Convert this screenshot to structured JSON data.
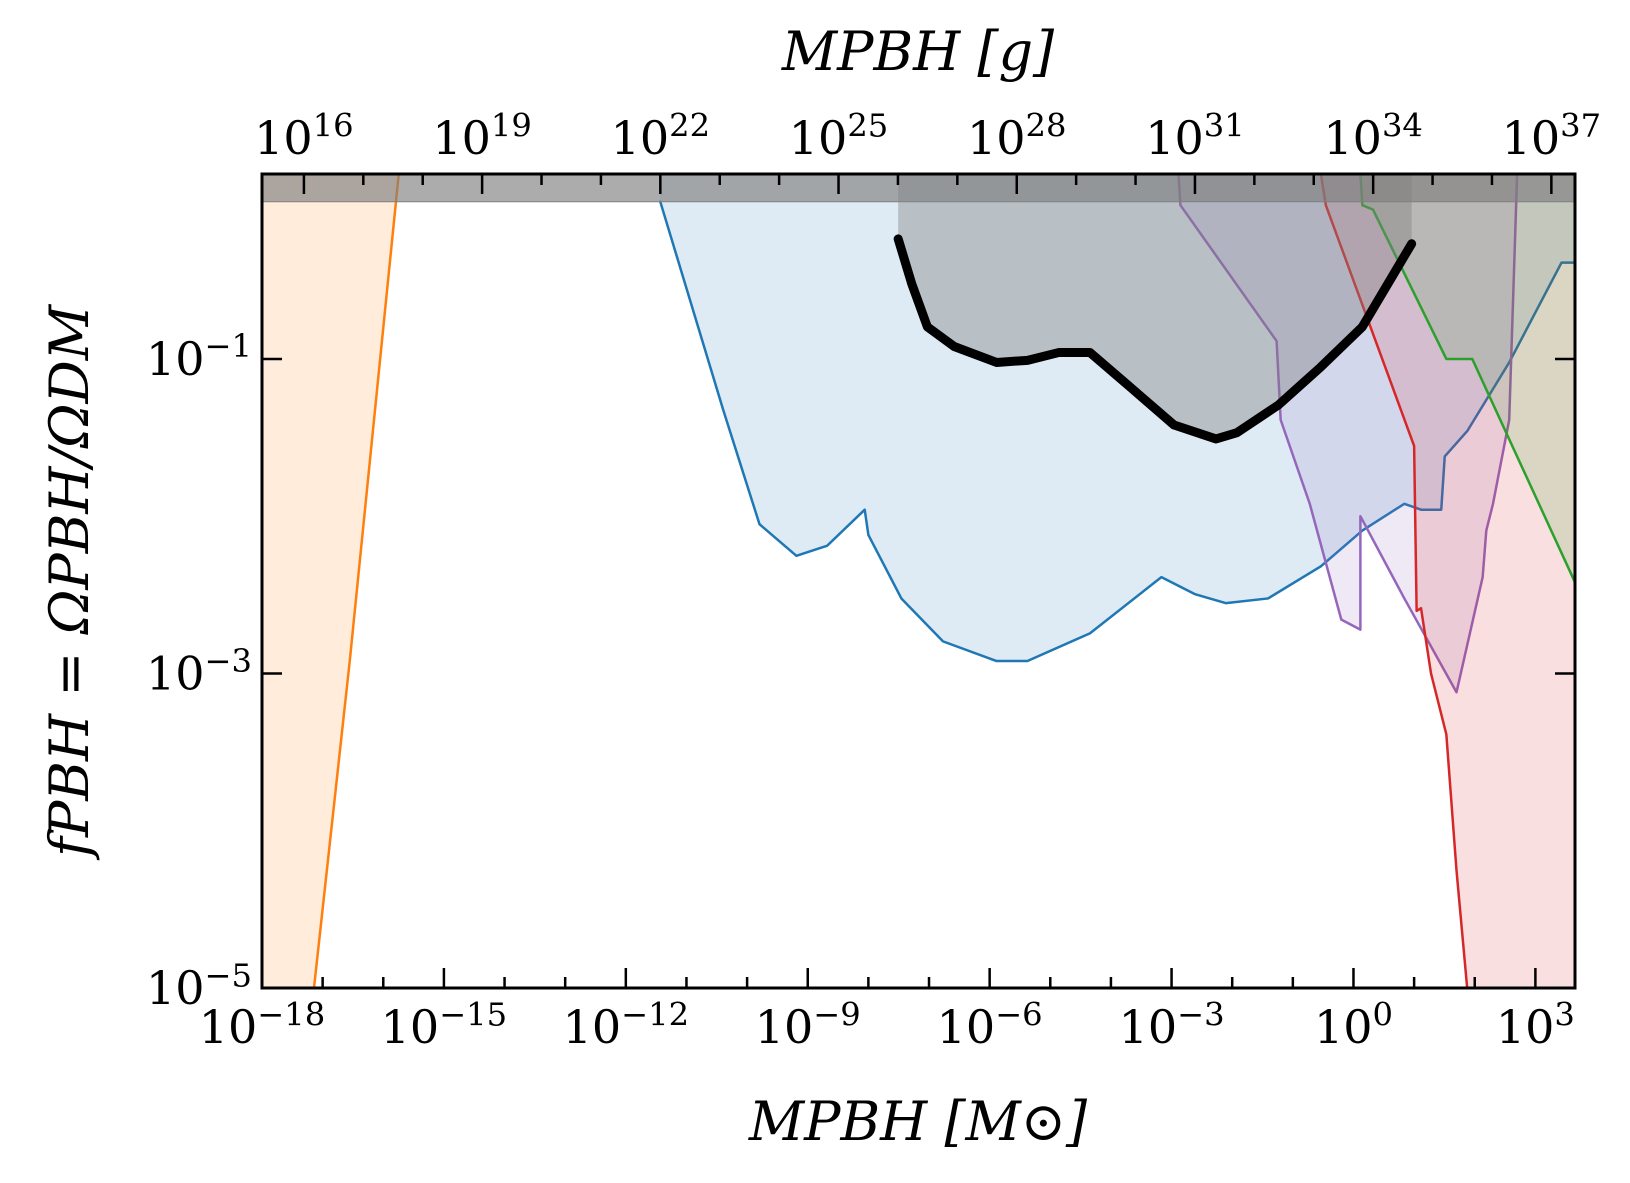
{
  "chart_data": {
    "type": "area",
    "xlabel": "MPBH [M⊙]",
    "ylabel": "fPBH = ΩPBH/ΩDM",
    "x2label": "MPBH [g]",
    "xscale": "log",
    "yscale": "log",
    "x2scale": "log",
    "xlim": [
      1e-18,
      4500
    ],
    "ylim": [
      1e-05,
      1.5
    ],
    "x2lim": [
      1970000000000000.0,
      2.5e+37
    ],
    "xticks": [
      {
        "value": 1e-18,
        "label": "10−18"
      },
      {
        "value": 1e-15,
        "label": "10−15"
      },
      {
        "value": 1e-12,
        "label": "10−12"
      },
      {
        "value": 1e-09,
        "label": "10−9"
      },
      {
        "value": 1e-06,
        "label": "10−6"
      },
      {
        "value": 0.001,
        "label": "10−3"
      },
      {
        "value": 1,
        "label": "100"
      },
      {
        "value": 1000,
        "label": "103"
      }
    ],
    "xminorticks": [
      1e-17,
      1e-16,
      1e-14,
      1e-13,
      1e-11,
      1e-10,
      1e-08,
      1e-07,
      1e-05,
      0.0001,
      0.01,
      0.1,
      10,
      100
    ],
    "x2ticks": [
      {
        "value": 1e+16,
        "label": "1016"
      },
      {
        "value": 1e+19,
        "label": "1019"
      },
      {
        "value": 1e+22,
        "label": "1022"
      },
      {
        "value": 1e+25,
        "label": "1025"
      },
      {
        "value": 1e+28,
        "label": "1028"
      },
      {
        "value": 1e+31,
        "label": "1031"
      },
      {
        "value": 1e+34,
        "label": "1034"
      },
      {
        "value": 1e+37,
        "label": "1037"
      }
    ],
    "x2minorticks": [
      1e+17,
      1e+18,
      1e+20,
      1e+21,
      1e+23,
      1e+24,
      1e+26,
      1e+27,
      1e+29,
      1e+30,
      1e+32,
      1e+33,
      1e+35,
      1e+36
    ],
    "yticks": [
      {
        "value": 1e-05,
        "label": "10−5"
      },
      {
        "value": 0.001,
        "label": "10−3"
      },
      {
        "value": 0.1,
        "label": "10−1"
      }
    ],
    "series": [
      {
        "color": "#ff7f0e",
        "fill": "left",
        "fill_opacity": 0.15,
        "linewidth": 2.5,
        "x": [
          1.8e-16,
          2.8e-17,
          7.2e-18
        ],
        "values": [
          1.5,
          0.0012,
          1e-05
        ]
      },
      {
        "color": "#1f77b4",
        "fill": "above",
        "fill_opacity": 0.15,
        "linewidth": 2.5,
        "x": [
          3.7e-12,
          4e-11,
          1.6e-10,
          6.5e-10,
          2.1e-09,
          8.7e-09,
          1e-08,
          3.5e-08,
          1.7e-07,
          1.3e-06,
          4.2e-06,
          4.5e-05,
          0.00068,
          0.0024,
          0.0079,
          0.039,
          0.29,
          1.4,
          6.9,
          13,
          28,
          32,
          76,
          370,
          2700,
          4500
        ],
        "values": [
          1,
          0.048,
          0.0089,
          0.0056,
          0.0065,
          0.011,
          0.0076,
          0.003,
          0.0016,
          0.0012,
          0.0012,
          0.0018,
          0.0041,
          0.0032,
          0.0028,
          0.003,
          0.0048,
          0.0081,
          0.012,
          0.011,
          0.011,
          0.024,
          0.035,
          0.095,
          0.41,
          0.41
        ]
      },
      {
        "color": "#9467bd",
        "fill": "above",
        "fill_opacity": 0.15,
        "linewidth": 2.5,
        "x": [
          0.0013,
          0.0014,
          0.054,
          0.063,
          0.19,
          0.63,
          1.3,
          1.3,
          6.9,
          50,
          135,
          155,
          200,
          370,
          500
        ],
        "values": [
          1.5,
          0.95,
          0.13,
          0.041,
          0.012,
          0.0022,
          0.0019,
          0.01,
          0.003,
          0.00076,
          0.0041,
          0.0081,
          0.012,
          0.041,
          1.5
        ]
      },
      {
        "color": "#d62728",
        "fill": "right",
        "fill_opacity": 0.15,
        "linewidth": 2.5,
        "x": [
          0.29,
          0.35,
          10,
          11,
          13,
          19,
          34,
          50,
          75
        ],
        "values": [
          1.5,
          0.95,
          0.028,
          0.0025,
          0.0026,
          0.001,
          0.00041,
          5.6e-05,
          1e-05
        ]
      },
      {
        "color": "#2ca02c",
        "fill": "above",
        "fill_opacity": 0.15,
        "linewidth": 2.5,
        "x": [
          1.3,
          1.4,
          2.1,
          34,
          91,
          4500
        ],
        "values": [
          1.5,
          0.95,
          0.89,
          0.1,
          0.1,
          0.0038
        ]
      },
      {
        "color": "#808080",
        "fill": "above",
        "fill_opacity": 0.65,
        "linewidth": 1,
        "x": [
          1e-18,
          4500
        ],
        "values": [
          1,
          1
        ]
      },
      {
        "color": "#000000",
        "fill": "above",
        "fill_color": "#808080",
        "fill_opacity": 0.4,
        "linewidth": 9,
        "x": [
          3.1e-08,
          5.2e-08,
          9.4e-08,
          2.6e-07,
          1.3e-06,
          4.2e-06,
          1.4e-05,
          4.5e-05,
          0.00022,
          0.0011,
          0.0054,
          0.012,
          0.058,
          0.29,
          1.4,
          9.1
        ],
        "values": [
          0.58,
          0.3,
          0.16,
          0.12,
          0.095,
          0.098,
          0.11,
          0.11,
          0.065,
          0.038,
          0.031,
          0.034,
          0.051,
          0.089,
          0.16,
          0.54
        ]
      }
    ]
  }
}
